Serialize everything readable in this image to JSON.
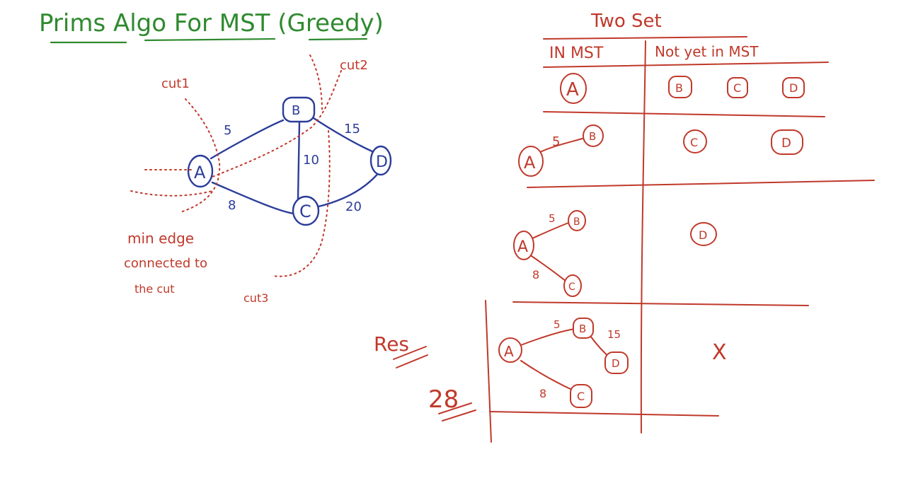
{
  "title": "Prims Algo For MST (Greedy)",
  "graph": {
    "nodes": [
      "A",
      "B",
      "C",
      "D"
    ],
    "edge_weights": {
      "AB": "5",
      "AC": "8",
      "BC": "10",
      "BD": "15",
      "CD": "20"
    },
    "cut_labels": [
      "cut1",
      "cut2",
      "cut3"
    ],
    "note_lines": [
      "min edge",
      "connected to",
      "the cut"
    ]
  },
  "table": {
    "heading": "Two Set",
    "col_in_mst": "IN MST",
    "col_not_in_mst": "Not yet in MST",
    "rows": [
      {
        "in_mst_nodes": [
          "A"
        ],
        "not_yet": [
          "B",
          "C",
          "D"
        ]
      },
      {
        "in_mst_nodes": [
          "A",
          "B"
        ],
        "edge_label": "5",
        "not_yet": [
          "C",
          "D"
        ]
      },
      {
        "in_mst_nodes": [
          "A",
          "B",
          "C"
        ],
        "edge_labels": [
          "5",
          "8"
        ],
        "not_yet": [
          "D"
        ]
      },
      {
        "in_mst_nodes": [
          "A",
          "B",
          "C",
          "D"
        ],
        "edge_labels": [
          "5",
          "15",
          "8"
        ],
        "not_yet_mark": "X"
      }
    ]
  },
  "result": {
    "label": "Res",
    "total": "28"
  },
  "colors": {
    "green": "#2f8a2f",
    "blue": "#2b3c9a",
    "red": "#c0392b"
  }
}
